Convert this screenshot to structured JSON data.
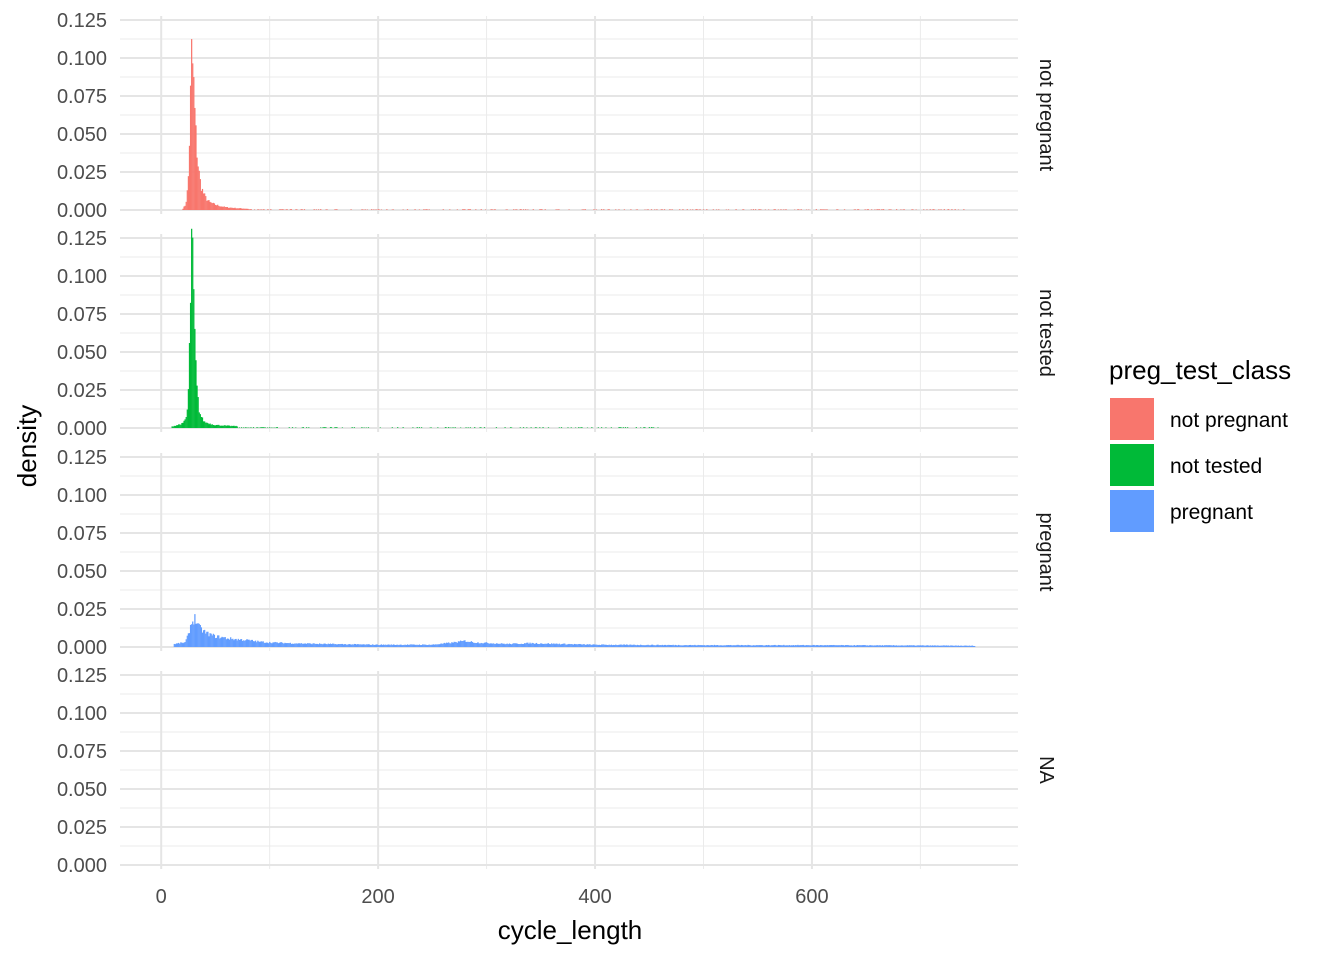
{
  "chart_data": {
    "type": "bar",
    "subtype": "faceted histogram (density)",
    "xlabel": "cycle_length",
    "ylabel": "density",
    "x_ticks": [
      0,
      200,
      400,
      600
    ],
    "y_ticks": [
      0.0,
      0.025,
      0.05,
      0.075,
      0.1,
      0.125
    ],
    "y_tick_labels": [
      "0.000",
      "0.025",
      "0.050",
      "0.075",
      "0.100",
      "0.125"
    ],
    "xlim": [
      -38,
      790
    ],
    "ylim": [
      0,
      0.125
    ],
    "grid": true,
    "legend": {
      "title": "preg_test_class",
      "position": "right",
      "entries": [
        {
          "label": "not pregnant",
          "color": "#F8766D"
        },
        {
          "label": "not tested",
          "color": "#00BA38"
        },
        {
          "label": "pregnant",
          "color": "#619CFF"
        }
      ]
    },
    "facets": [
      {
        "label": "not pregnant",
        "color": "#F8766D",
        "peaks": [
          [
            20,
            0.001
          ],
          [
            22,
            0.003
          ],
          [
            23,
            0.006
          ],
          [
            24,
            0.012
          ],
          [
            25,
            0.022
          ],
          [
            26,
            0.045
          ],
          [
            27,
            0.075
          ],
          [
            28,
            0.103
          ],
          [
            29,
            0.095
          ],
          [
            30,
            0.082
          ],
          [
            31,
            0.064
          ],
          [
            32,
            0.05
          ],
          [
            33,
            0.038
          ],
          [
            34,
            0.03
          ],
          [
            35,
            0.024
          ],
          [
            36,
            0.019
          ],
          [
            37,
            0.015
          ],
          [
            38,
            0.013
          ],
          [
            39,
            0.011
          ],
          [
            40,
            0.0095
          ],
          [
            42,
            0.007
          ],
          [
            45,
            0.005
          ],
          [
            50,
            0.0035
          ],
          [
            55,
            0.0025
          ],
          [
            60,
            0.0018
          ],
          [
            70,
            0.0012
          ],
          [
            80,
            0.0008
          ]
        ],
        "tail_to": 740,
        "tail_level": 0.0003
      },
      {
        "label": "not tested",
        "color": "#00BA38",
        "peaks": [
          [
            10,
            0.001
          ],
          [
            15,
            0.002
          ],
          [
            20,
            0.003
          ],
          [
            23,
            0.007
          ],
          [
            24,
            0.012
          ],
          [
            25,
            0.024
          ],
          [
            26,
            0.05
          ],
          [
            27,
            0.088
          ],
          [
            28,
            0.123
          ],
          [
            29,
            0.108
          ],
          [
            30,
            0.085
          ],
          [
            31,
            0.06
          ],
          [
            32,
            0.04
          ],
          [
            33,
            0.026
          ],
          [
            34,
            0.018
          ],
          [
            35,
            0.012
          ],
          [
            36,
            0.009
          ],
          [
            38,
            0.006
          ],
          [
            40,
            0.004
          ],
          [
            45,
            0.0028
          ],
          [
            50,
            0.002
          ],
          [
            60,
            0.0015
          ],
          [
            70,
            0.0012
          ]
        ],
        "tail_to": 460,
        "tail_level": 0.0003
      },
      {
        "label": "pregnant",
        "color": "#619CFF",
        "peaks": [
          [
            12,
            0.002
          ],
          [
            22,
            0.003
          ],
          [
            25,
            0.008
          ],
          [
            27,
            0.014
          ],
          [
            29,
            0.017
          ],
          [
            31,
            0.019
          ],
          [
            33,
            0.016
          ],
          [
            35,
            0.013
          ],
          [
            38,
            0.011
          ],
          [
            42,
            0.009
          ],
          [
            46,
            0.008
          ],
          [
            50,
            0.007
          ],
          [
            55,
            0.0065
          ],
          [
            60,
            0.0058
          ],
          [
            70,
            0.005
          ],
          [
            80,
            0.0045
          ],
          [
            90,
            0.0035
          ],
          [
            100,
            0.003
          ],
          [
            120,
            0.0025
          ],
          [
            150,
            0.002
          ],
          [
            200,
            0.0015
          ],
          [
            250,
            0.0015
          ],
          [
            270,
            0.003
          ],
          [
            280,
            0.004
          ],
          [
            290,
            0.003
          ],
          [
            320,
            0.002
          ],
          [
            340,
            0.0025
          ],
          [
            400,
            0.0015
          ],
          [
            500,
            0.0012
          ],
          [
            600,
            0.0012
          ],
          [
            700,
            0.001
          ],
          [
            750,
            0.0008
          ]
        ],
        "tail_to": 750,
        "tail_level": 0.001
      },
      {
        "label": "NA",
        "color": "#999999",
        "peaks": [],
        "tail_to": 0,
        "tail_level": 0
      }
    ]
  }
}
